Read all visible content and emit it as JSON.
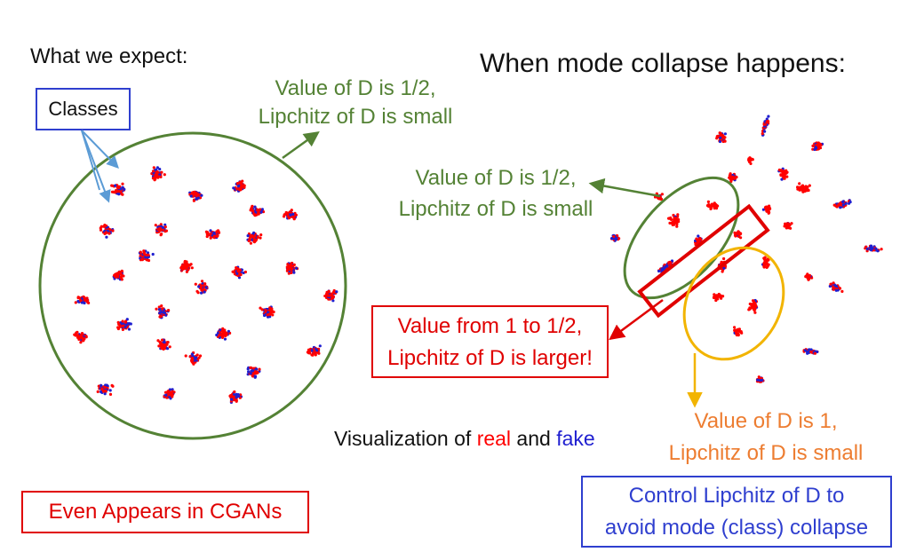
{
  "left_heading": "What we expect:",
  "right_heading": "When mode collapse happens:",
  "classes_label": "Classes",
  "label_left_circle": [
    "Value of D is 1/2,",
    "Lipchitz of D is small"
  ],
  "label_green_ellipse": [
    "Value of D is 1/2,",
    "Lipchitz of D is small"
  ],
  "label_red_rect": [
    "Value from 1 to 1/2,",
    "Lipchitz of D is larger!"
  ],
  "label_yellow_ellipse": [
    "Value of D is 1,",
    "Lipchitz of D is small"
  ],
  "visualization_caption": {
    "prefix": "Visualization of ",
    "real_word": "real",
    "middle": " and ",
    "fake_word": "fake"
  },
  "left_note": "Even Appears in CGANs",
  "right_note": [
    "Control Lipchitz of D to",
    "avoid mode (class) collapse"
  ],
  "colors": {
    "real": "#ff0000",
    "fake": "#1f1fd0",
    "green": "#548235",
    "red": "#e00000",
    "orange": "#ed7d31",
    "yellow": "#f2b400",
    "blue_box": "#2f3fcf",
    "arrow_blue": "#5b9bd5"
  }
}
